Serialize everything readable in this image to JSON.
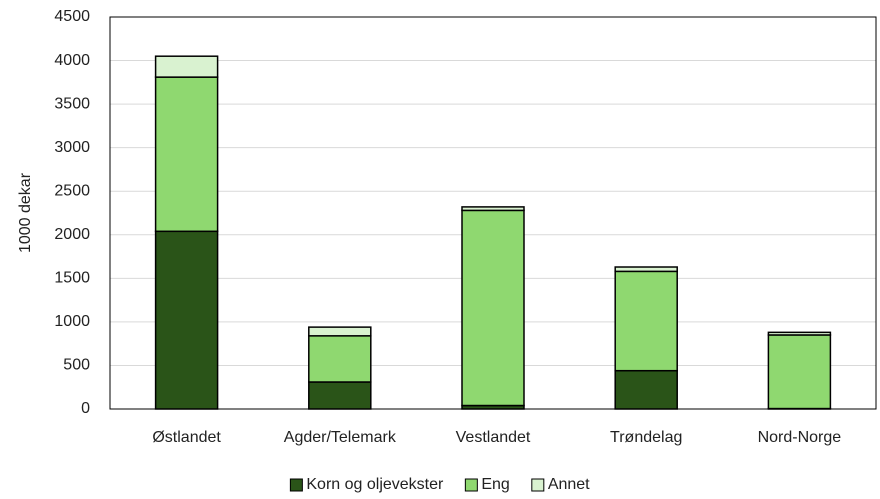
{
  "chart_data": {
    "type": "stacked_bar",
    "y_label": "1000 dekar",
    "categories": [
      "Østlandet",
      "Agder/Telemark",
      "Vestlandet",
      "Trøndelag",
      "Nord-Norge"
    ],
    "series": [
      {
        "name": "Korn og oljevekster",
        "color": "#2a5418",
        "values": [
          2040,
          310,
          40,
          440,
          5
        ]
      },
      {
        "name": "Eng",
        "color": "#8fd870",
        "values": [
          1770,
          530,
          2240,
          1140,
          845
        ]
      },
      {
        "name": "Annet",
        "color": "#d9f2d0",
        "values": [
          240,
          100,
          40,
          50,
          30
        ]
      }
    ],
    "ylim": [
      0,
      4500
    ],
    "yticks": [
      0,
      500,
      1000,
      1500,
      2000,
      2500,
      3000,
      3500,
      4000,
      4500
    ],
    "grid": true,
    "legend": "bottom"
  }
}
